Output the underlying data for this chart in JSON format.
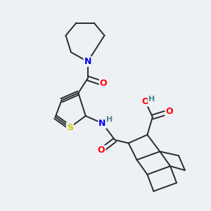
{
  "bg_color": "#edf0f4",
  "bond_color": "#2a2a2a",
  "atom_colors": {
    "N": "#0000ee",
    "O": "#ff0000",
    "S": "#cccc00",
    "H": "#4a8a8a",
    "C": "#2a2a2a"
  },
  "lw": 1.4,
  "fontsize": 9
}
